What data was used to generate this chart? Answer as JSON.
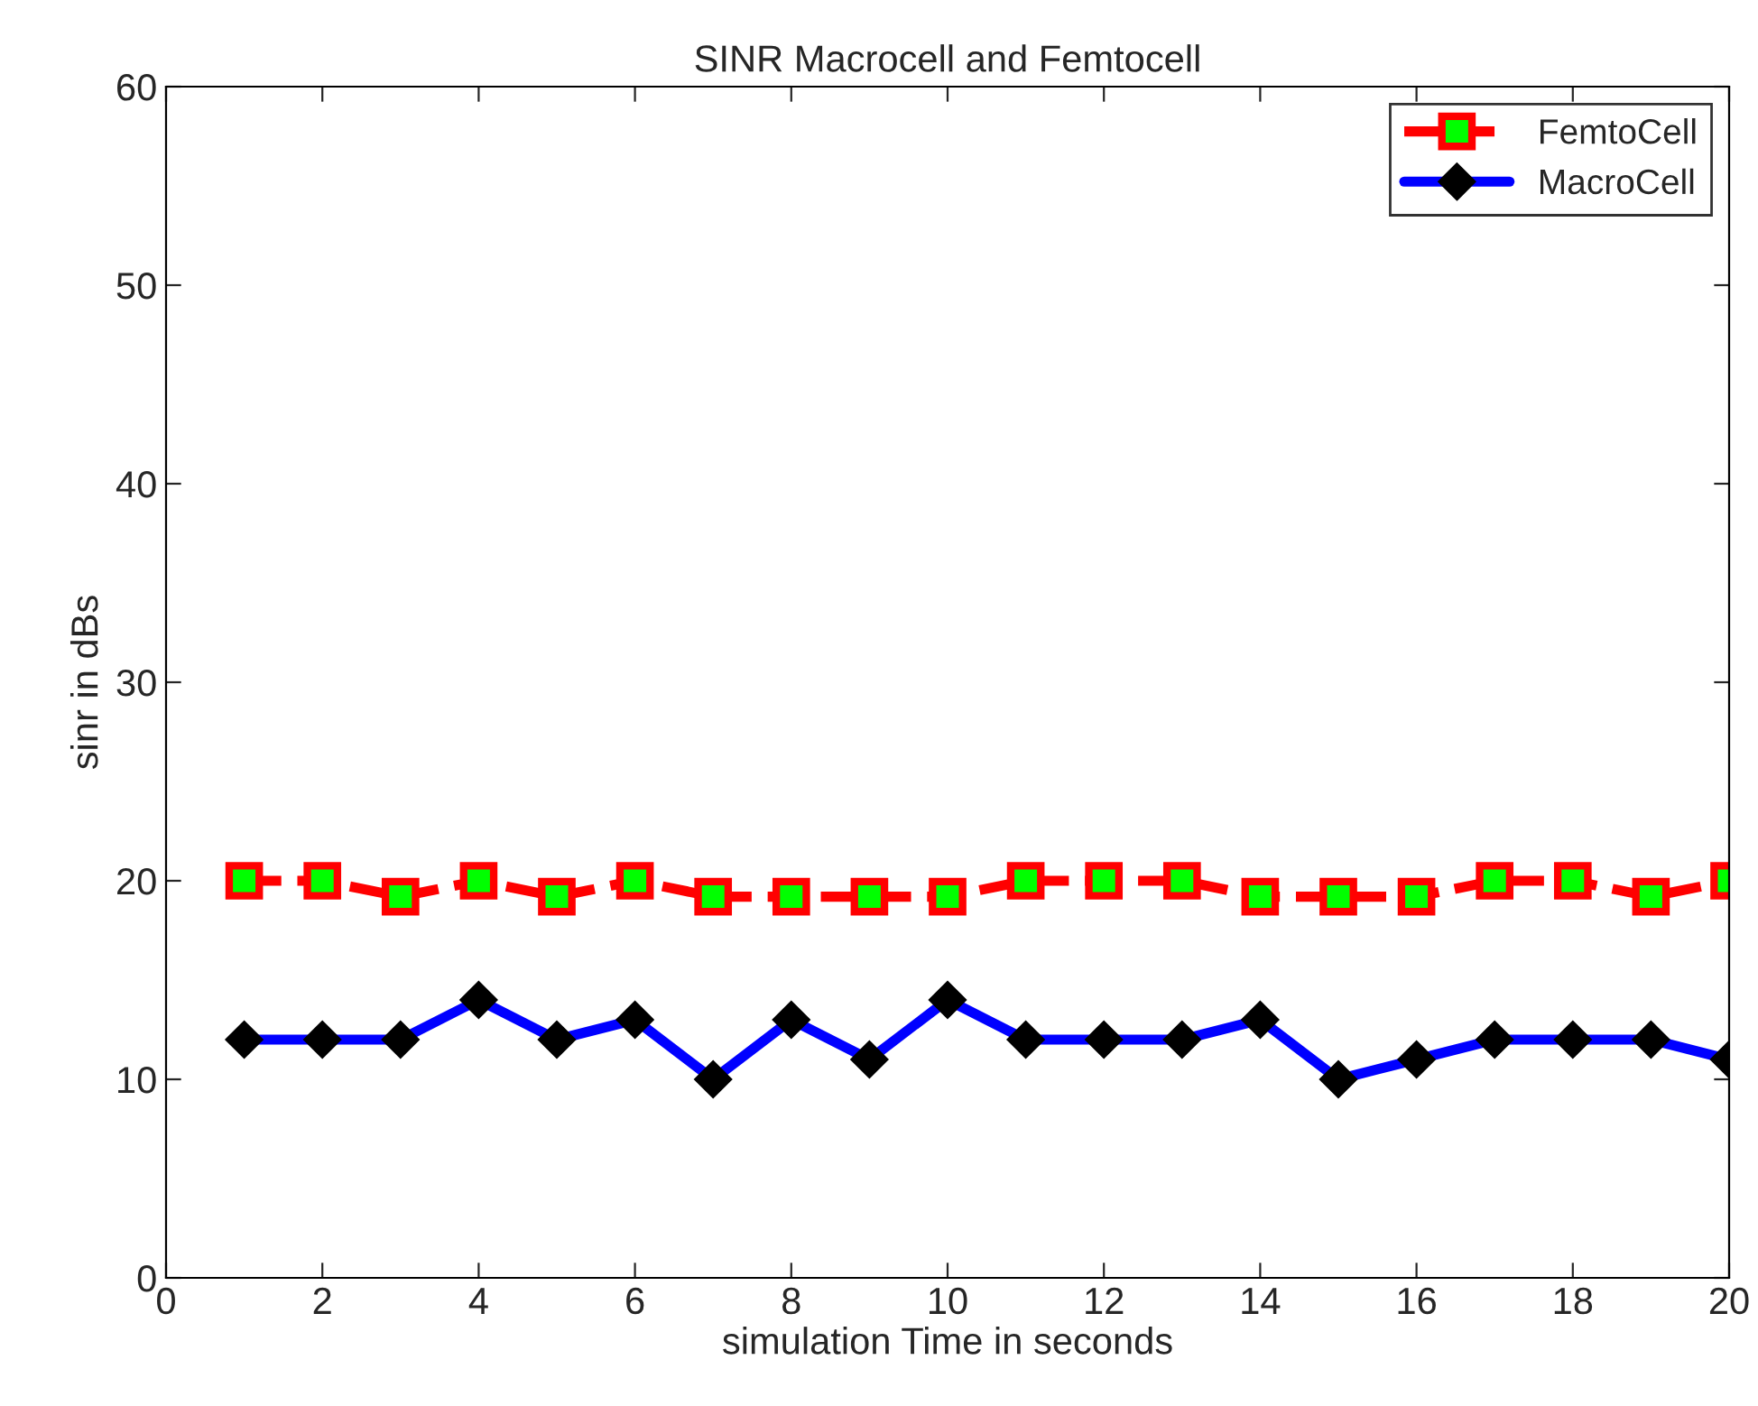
{
  "chart_data": {
    "type": "line",
    "title": "SINR Macrocell and Femtocell",
    "xlabel": "simulation Time in seconds",
    "ylabel": "sinr in dBs",
    "x": [
      1,
      2,
      3,
      4,
      5,
      6,
      7,
      8,
      9,
      10,
      11,
      12,
      13,
      14,
      15,
      16,
      17,
      18,
      19,
      20
    ],
    "series": [
      {
        "name": "FemtoCell",
        "color": "#ff0000",
        "marker": "square",
        "line_style": "dashed",
        "values": [
          20,
          20,
          19.2,
          20,
          19.2,
          20,
          19.2,
          19.2,
          19.2,
          19.2,
          20,
          20,
          20,
          19.2,
          19.2,
          19.2,
          20,
          20,
          19.2,
          20
        ]
      },
      {
        "name": "MacroCell",
        "color": "#0000ff",
        "marker": "diamond",
        "line_style": "solid",
        "values": [
          12,
          12,
          12,
          14,
          12,
          13,
          10,
          13,
          11,
          14,
          12,
          12,
          12,
          13,
          10,
          11,
          12,
          12,
          12,
          11
        ]
      }
    ],
    "xlim": [
      0,
      20
    ],
    "xticks": [
      0,
      2,
      4,
      6,
      8,
      10,
      12,
      14,
      16,
      18,
      20
    ],
    "ylim": [
      0,
      60
    ],
    "yticks": [
      0,
      10,
      20,
      30,
      40,
      50,
      60
    ],
    "grid": false,
    "legend": "top right"
  }
}
